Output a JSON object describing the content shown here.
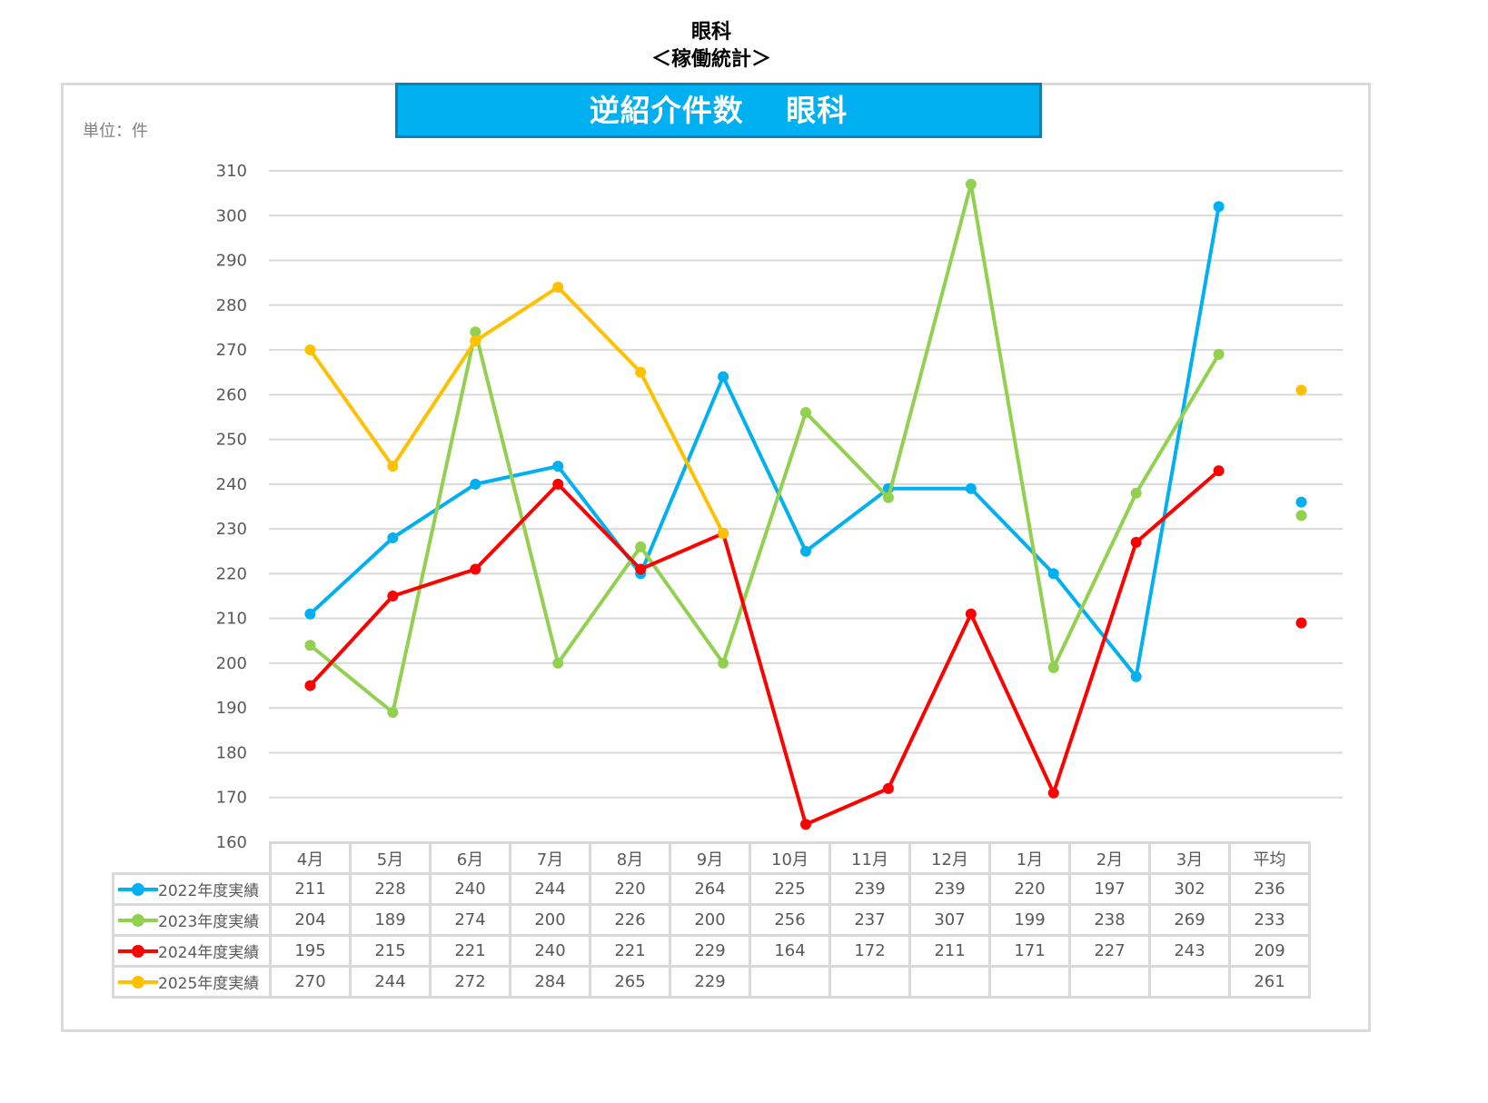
{
  "header": {
    "title_line1": "眼科",
    "title_line2": "＜稼働統計＞"
  },
  "banner": {
    "title": "逆紹介件数　 眼科"
  },
  "unit_label": "単位：件",
  "colors": {
    "2022": "#00b0f0",
    "2023": "#92d050",
    "2024": "#ff0000",
    "2025": "#ffc000",
    "gridline": "#d9d9d9",
    "banner_fill": "#00b0f0",
    "banner_border": "#0f7fb3"
  },
  "chart_data": {
    "type": "line",
    "title": "逆紹介件数　眼科",
    "xlabel": "",
    "ylabel": "単位：件",
    "ylim": [
      160,
      310
    ],
    "ytick_step": 10,
    "yticks": [
      310,
      300,
      290,
      280,
      270,
      260,
      250,
      240,
      230,
      220,
      210,
      200,
      190,
      180,
      170,
      160
    ],
    "grid": true,
    "legend_position": "data-table-left",
    "categories": [
      "4月",
      "5月",
      "6月",
      "7月",
      "8月",
      "9月",
      "10月",
      "11月",
      "12月",
      "1月",
      "2月",
      "3月",
      "平均"
    ],
    "series": [
      {
        "name": "2022年度実績",
        "color": "#00b0f0",
        "values": [
          211,
          228,
          240,
          244,
          220,
          264,
          225,
          239,
          239,
          220,
          197,
          302
        ],
        "average": 236
      },
      {
        "name": "2023年度実績",
        "color": "#92d050",
        "values": [
          204,
          189,
          274,
          200,
          226,
          200,
          256,
          237,
          307,
          199,
          238,
          269
        ],
        "average": 233
      },
      {
        "name": "2024年度実績",
        "color": "#ff0000",
        "values": [
          195,
          215,
          221,
          240,
          221,
          229,
          164,
          172,
          211,
          171,
          227,
          243
        ],
        "average": 209
      },
      {
        "name": "2025年度実績",
        "color": "#ffc000",
        "values": [
          270,
          244,
          272,
          284,
          265,
          229,
          null,
          null,
          null,
          null,
          null,
          null
        ],
        "average": 261
      }
    ]
  },
  "table": {
    "headers": [
      "4月",
      "5月",
      "6月",
      "7月",
      "8月",
      "9月",
      "10月",
      "11月",
      "12月",
      "1月",
      "2月",
      "3月",
      "平均"
    ],
    "rows": [
      {
        "label": "2022年度実績",
        "cells": [
          "211",
          "228",
          "240",
          "244",
          "220",
          "264",
          "225",
          "239",
          "239",
          "220",
          "197",
          "302",
          "236"
        ]
      },
      {
        "label": "2023年度実績",
        "cells": [
          "204",
          "189",
          "274",
          "200",
          "226",
          "200",
          "256",
          "237",
          "307",
          "199",
          "238",
          "269",
          "233"
        ]
      },
      {
        "label": "2024年度実績",
        "cells": [
          "195",
          "215",
          "221",
          "240",
          "221",
          "229",
          "164",
          "172",
          "211",
          "171",
          "227",
          "243",
          "209"
        ]
      },
      {
        "label": "2025年度実績",
        "cells": [
          "270",
          "244",
          "272",
          "284",
          "265",
          "229",
          "",
          "",
          "",
          "",
          "",
          "",
          "261"
        ]
      }
    ]
  }
}
